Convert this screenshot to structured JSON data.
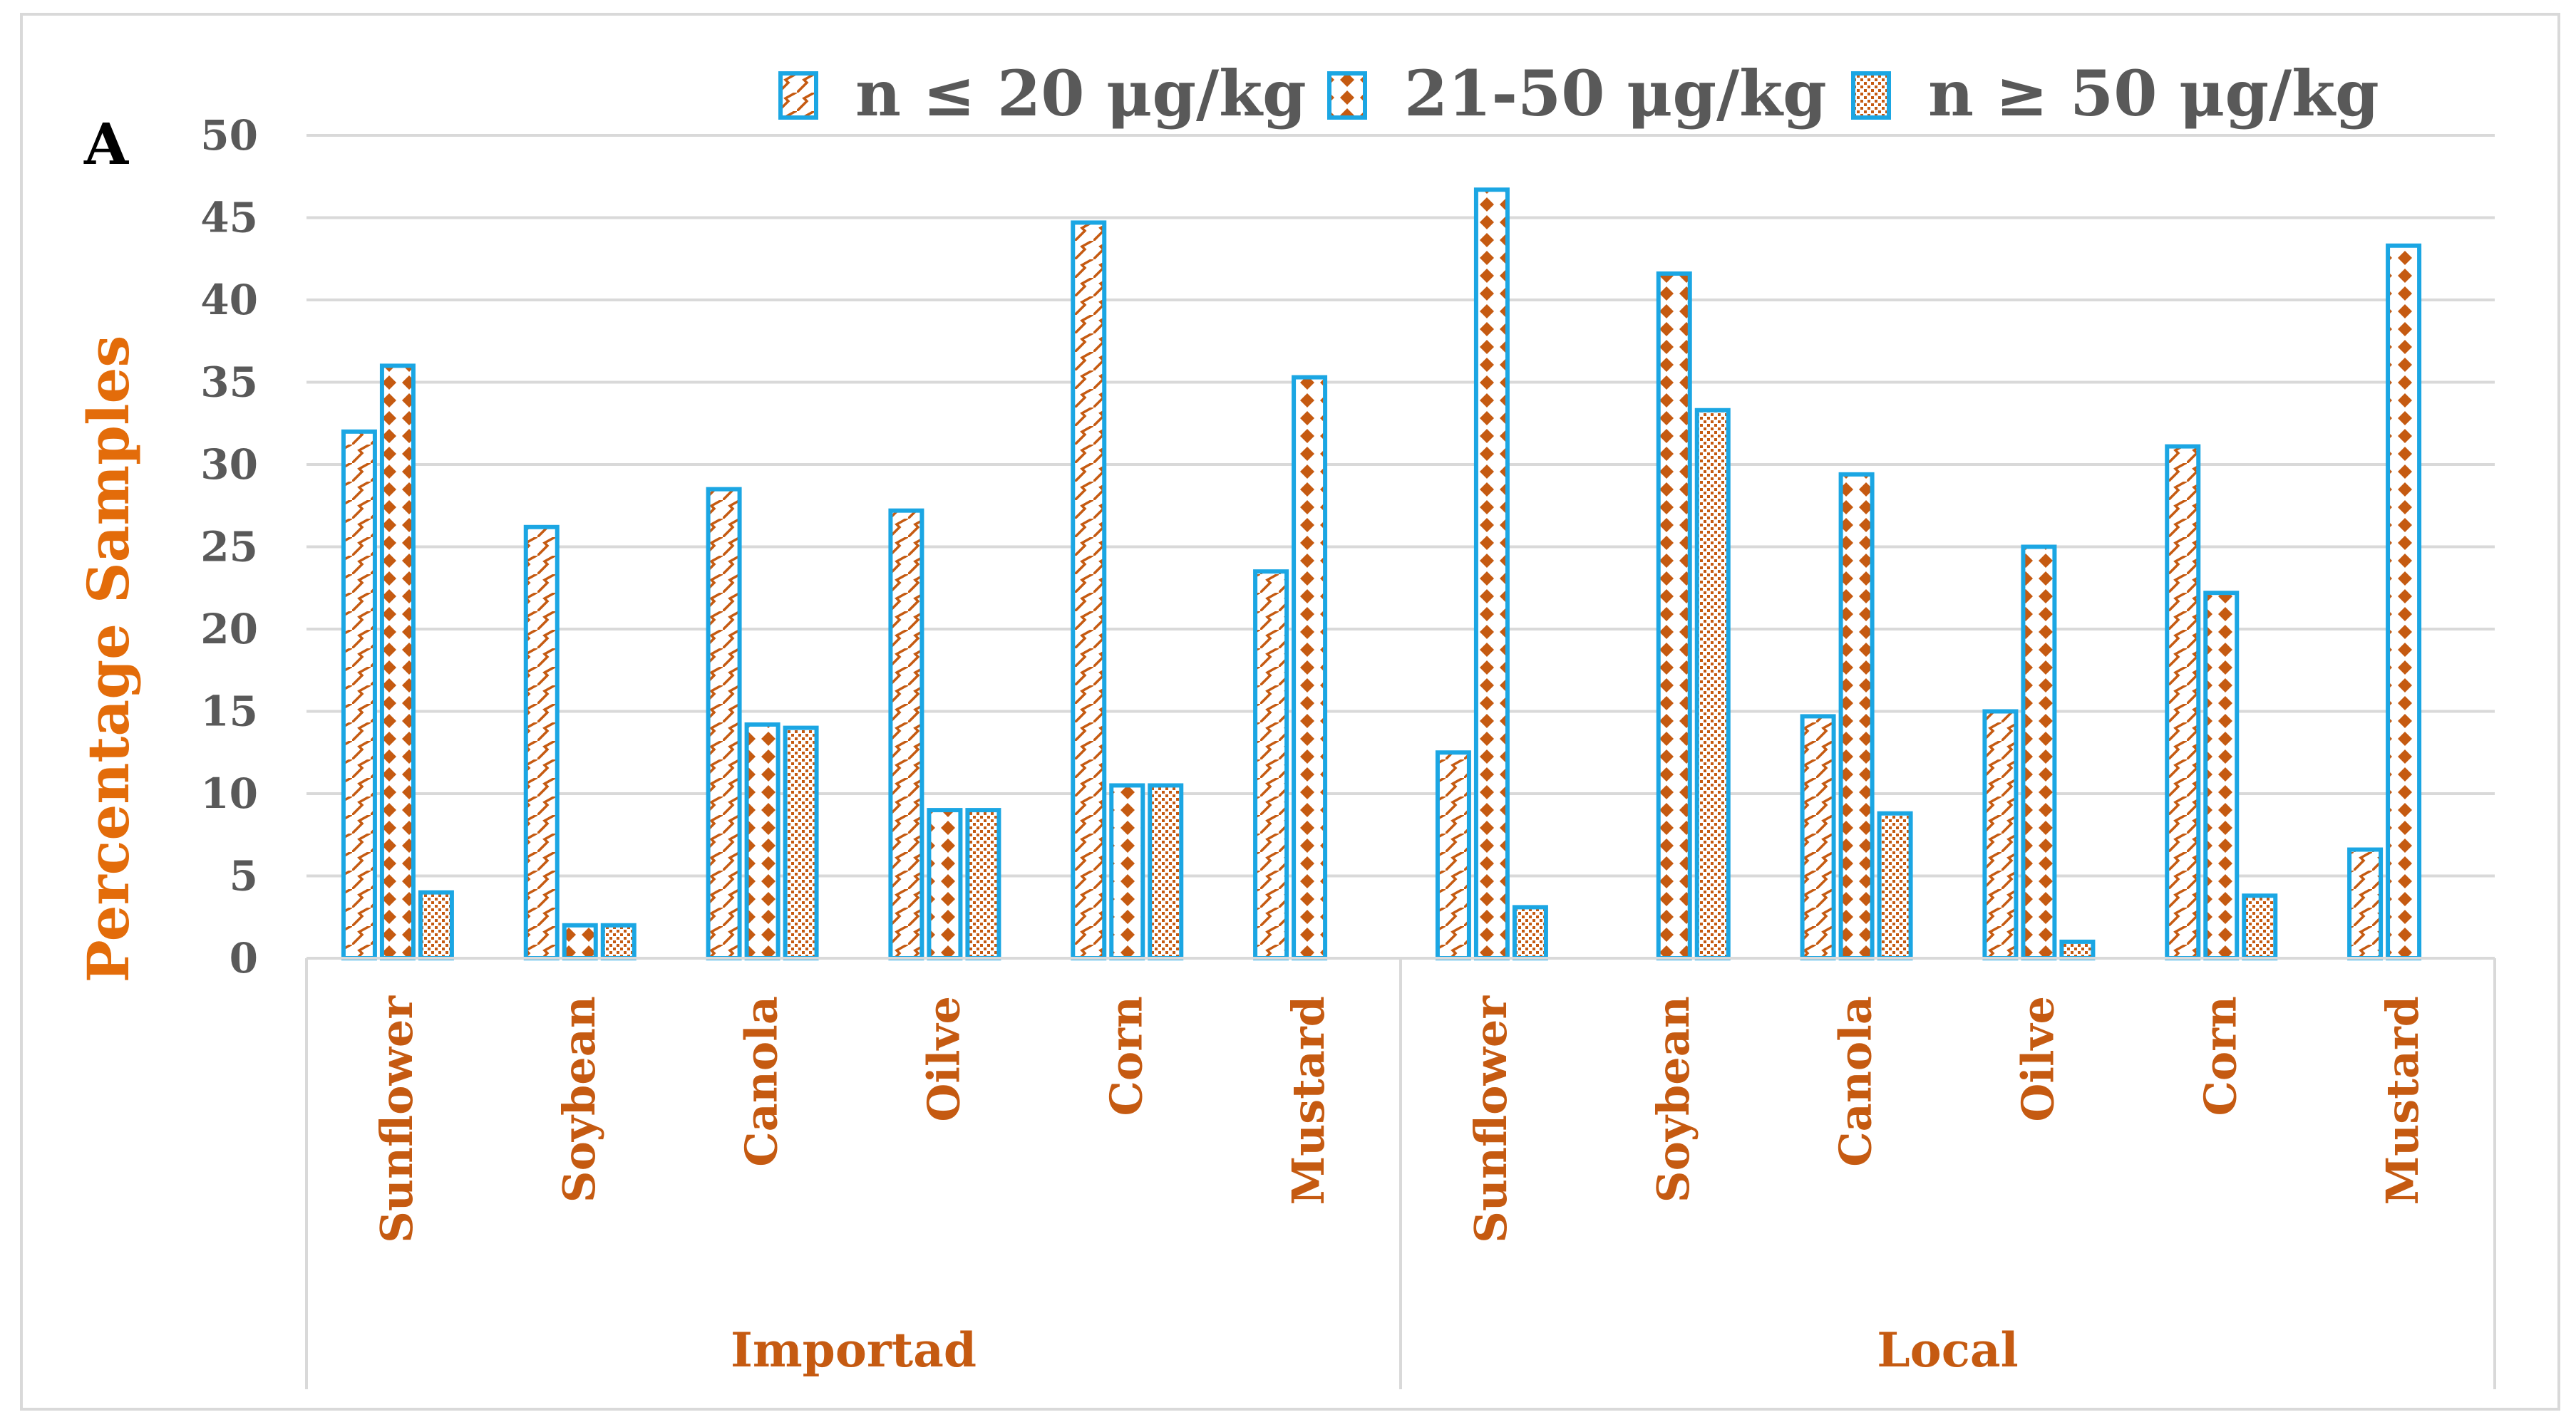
{
  "panel_label": "A",
  "chart_data": {
    "type": "bar",
    "title": "",
    "ylabel": "Percentage Samples",
    "xlabel": "",
    "ylim": [
      0,
      50
    ],
    "yticks": [
      0,
      5,
      10,
      15,
      20,
      25,
      30,
      35,
      40,
      45,
      50
    ],
    "grid": true,
    "legend_position": "top",
    "groups": [
      {
        "name": "Importad",
        "categories": [
          "Sunflower",
          "Soybean",
          "Canola",
          "Oilve",
          "Corn",
          "Mustard"
        ]
      },
      {
        "name": "Local",
        "categories": [
          "Sunflower",
          "Soybean",
          "Canola",
          "Oilve",
          "Corn",
          "Mustard"
        ]
      }
    ],
    "series": [
      {
        "name": "n ≤ 20 μg/kg",
        "pattern": "diagonal-zigzag",
        "values": [
          32.0,
          26.2,
          28.5,
          27.2,
          44.7,
          23.5,
          12.5,
          0,
          14.7,
          15.0,
          31.1,
          6.6
        ]
      },
      {
        "name": "21-50 μg/kg",
        "pattern": "dots",
        "values": [
          36.0,
          2.0,
          14.2,
          9.0,
          10.5,
          35.3,
          46.7,
          41.6,
          29.4,
          25.0,
          22.2,
          43.3
        ]
      },
      {
        "name": "n ≥ 50 μg/kg",
        "pattern": "checker",
        "values": [
          4.0,
          2.0,
          14.0,
          9.0,
          10.5,
          0,
          3.1,
          33.3,
          8.8,
          1.0,
          3.8,
          0
        ]
      }
    ],
    "colors": {
      "bar_outline": "#1BA6E3",
      "pattern": "#C55A11",
      "axis_label": "#E36C0A",
      "tick_text": "#595959",
      "grid": "#D9D9D9"
    }
  }
}
